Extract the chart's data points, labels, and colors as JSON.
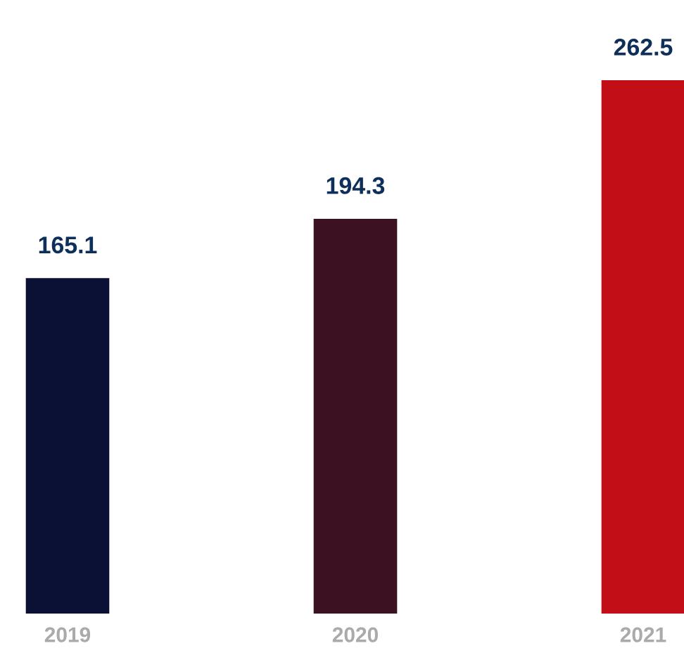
{
  "chart_data": {
    "type": "bar",
    "categories": [
      "2019",
      "2020",
      "2021"
    ],
    "values": [
      165.1,
      194.3,
      262.5
    ],
    "colors": [
      "#0b1035",
      "#3c1222",
      "#c20e16"
    ],
    "data_labels": true
  }
}
